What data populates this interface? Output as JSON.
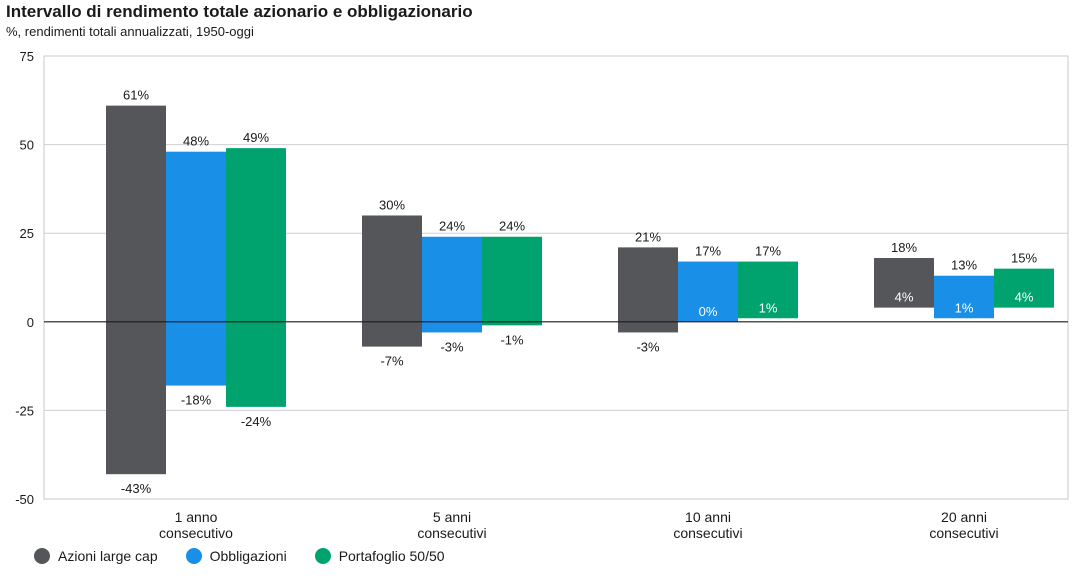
{
  "chart_data": {
    "type": "bar",
    "title": "Intervallo di rendimento totale azionario e obbligazionario",
    "subtitle": "%, rendimenti totali annualizzati, 1950-oggi",
    "ylim": [
      -50,
      75
    ],
    "yticks": [
      75,
      50,
      25,
      0,
      -25,
      -50
    ],
    "grid": true,
    "legend_position": "bottom-left",
    "categories": [
      [
        "1 anno",
        "consecutivo"
      ],
      [
        "5 anni",
        "consecutivi"
      ],
      [
        "10 anni",
        "consecutivi"
      ],
      [
        "20 anni",
        "consecutivi"
      ]
    ],
    "series": [
      {
        "name": "Azioni large cap",
        "color": "#54565a",
        "high": [
          61,
          30,
          21,
          18
        ],
        "low": [
          -43,
          -7,
          -3,
          4
        ],
        "high_labels": [
          "61%",
          "30%",
          "21%",
          "18%"
        ],
        "low_labels": [
          "-43%",
          "-7%",
          "-3%",
          "4%"
        ]
      },
      {
        "name": "Obbligazioni",
        "color": "#1a8fe8",
        "high": [
          48,
          24,
          17,
          13
        ],
        "low": [
          -18,
          -3,
          0,
          1
        ],
        "high_labels": [
          "48%",
          "24%",
          "17%",
          "13%"
        ],
        "low_labels": [
          "-18%",
          "-3%",
          "0%",
          "1%"
        ]
      },
      {
        "name": "Portafoglio 50/50",
        "color": "#00a36e",
        "high": [
          49,
          24,
          17,
          15
        ],
        "low": [
          -24,
          -1,
          1,
          4
        ],
        "high_labels": [
          "49%",
          "24%",
          "17%",
          "15%"
        ],
        "low_labels": [
          "-24%",
          "-1%",
          "1%",
          "4%"
        ]
      }
    ]
  }
}
